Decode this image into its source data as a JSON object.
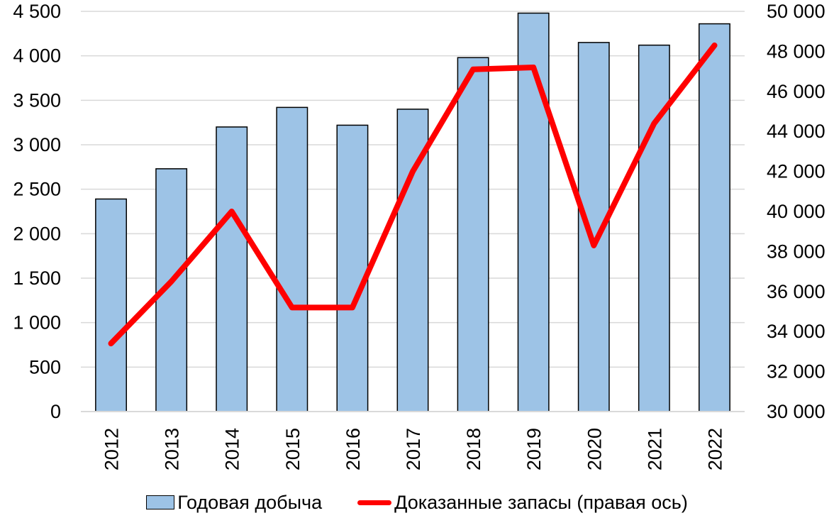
{
  "chart_data": {
    "type": "bar+line",
    "categories": [
      "2012",
      "2013",
      "2014",
      "2015",
      "2016",
      "2017",
      "2018",
      "2019",
      "2020",
      "2021",
      "2022"
    ],
    "series": [
      {
        "name": "Годовая добыча",
        "type": "bar",
        "axis": "left",
        "color": "#9DC3E6",
        "values": [
          2390,
          2730,
          3200,
          3420,
          3220,
          3400,
          3980,
          4480,
          4150,
          4120,
          4360
        ]
      },
      {
        "name": "Доказанные запасы (правая ось)",
        "type": "line",
        "axis": "right",
        "color": "#FF0000",
        "values": [
          33400,
          36500,
          40000,
          35200,
          35200,
          42000,
          47100,
          47200,
          38300,
          44400,
          48300
        ]
      }
    ],
    "left_axis": {
      "ylim": [
        0,
        4500
      ],
      "ticks": [
        0,
        500,
        1000,
        1500,
        2000,
        2500,
        3000,
        3500,
        4000,
        4500
      ],
      "tick_labels": [
        "0",
        "500",
        "1 000",
        "1 500",
        "2 000",
        "2 500",
        "3 000",
        "3 500",
        "4 000",
        "4 500"
      ]
    },
    "right_axis": {
      "ylim": [
        30000,
        50000
      ],
      "ticks": [
        30000,
        32000,
        34000,
        36000,
        38000,
        40000,
        42000,
        44000,
        46000,
        48000,
        50000
      ],
      "tick_labels": [
        "30 000",
        "32 000",
        "34 000",
        "36 000",
        "38 000",
        "40 000",
        "42 000",
        "44 000",
        "46 000",
        "48 000",
        "50 000"
      ]
    },
    "grid": true,
    "legend": "bottom",
    "title": "",
    "xlabel": "",
    "ylabel": ""
  }
}
